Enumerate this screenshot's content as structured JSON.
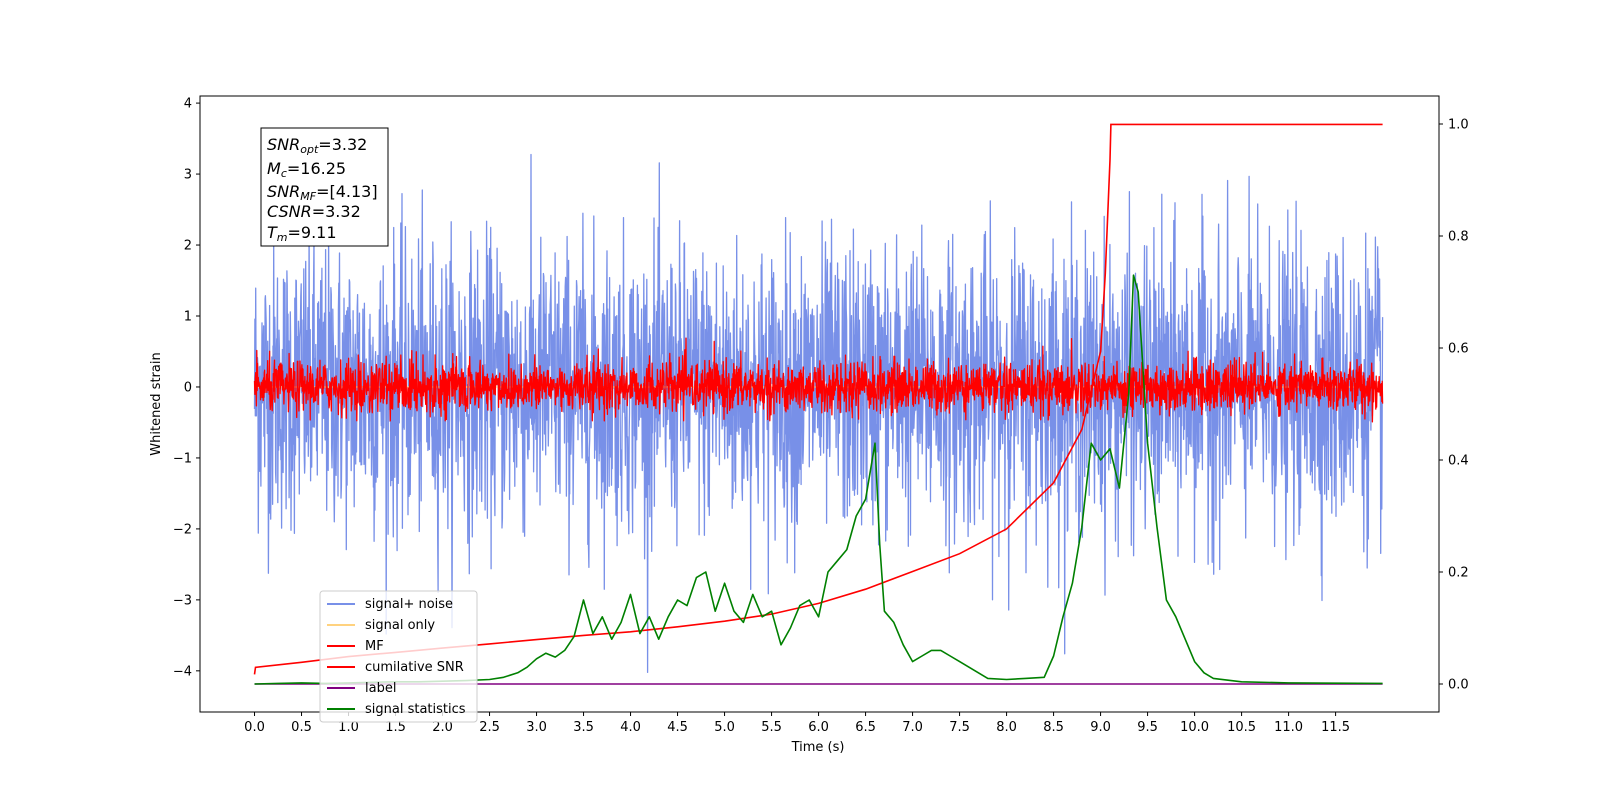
{
  "colors": {
    "signal_noise": "#7890e8",
    "signal_only": "#ffd27f",
    "mf": "#ff0000",
    "cumulative_snr": "#ff0000",
    "label": "#800080",
    "signal_statistics": "#008000"
  },
  "chart_data": {
    "type": "line",
    "title": "",
    "xlabel": "Time (s)",
    "ylabel": "Whitened strain",
    "xlim": [
      -0.58,
      12.6
    ],
    "ylim": [
      -4.58,
      4.1
    ],
    "y2lim": [
      -0.05,
      1.05
    ],
    "grid": false,
    "legend_position": "lower-left",
    "x_ticks": [
      "0.0",
      "0.5",
      "1.0",
      "1.5",
      "2.0",
      "2.5",
      "3.0",
      "3.5",
      "4.0",
      "4.5",
      "5.0",
      "5.5",
      "6.0",
      "6.5",
      "7.0",
      "7.5",
      "8.0",
      "8.5",
      "9.0",
      "9.5",
      "10.0",
      "10.5",
      "11.0",
      "11.5"
    ],
    "y_ticks": [
      "4",
      "3",
      "2",
      "1",
      "0",
      "−1",
      "−2",
      "−3",
      "−4"
    ],
    "y2_ticks": [
      "1.0",
      "0.8",
      "0.6",
      "0.4",
      "0.2",
      "0.0"
    ],
    "info_box": [
      {
        "main": "SNR",
        "sub": "opt",
        "value": "=3.32"
      },
      {
        "main": "M",
        "sub": "c",
        "value": "=16.25"
      },
      {
        "main": "SNR",
        "sub": "MF",
        "value": "=[4.13]"
      },
      {
        "main": "CSNR",
        "sub": "",
        "value": "=3.32"
      },
      {
        "main": "T",
        "sub": "m",
        "value": "=9.11"
      }
    ],
    "series": [
      {
        "name": "signal+ noise",
        "axis": "left",
        "kind": "noise",
        "x_range": [
          0,
          12
        ],
        "amplitude_std": 1.0,
        "range": [
          -4.15,
          3.7
        ]
      },
      {
        "name": "signal only",
        "axis": "left",
        "kind": "flat",
        "x_range": [
          0,
          12
        ],
        "values": [
          0
        ]
      },
      {
        "name": "MF",
        "axis": "left",
        "kind": "noise",
        "x_range": [
          0,
          12
        ],
        "amplitude_std": 0.18,
        "range": [
          -0.5,
          1.0
        ]
      },
      {
        "name": "cumilative SNR",
        "axis": "left",
        "x": [
          0,
          0.01,
          0.5,
          1.0,
          1.5,
          2.0,
          2.5,
          3.0,
          3.5,
          4.0,
          4.5,
          5.0,
          5.5,
          6.0,
          6.5,
          7.0,
          7.5,
          8.0,
          8.5,
          8.8,
          9.0,
          9.05,
          9.1,
          9.11,
          12.0
        ],
        "values": [
          -4.05,
          -3.95,
          -3.88,
          -3.8,
          -3.74,
          -3.68,
          -3.62,
          -3.56,
          -3.5,
          -3.45,
          -3.38,
          -3.3,
          -3.2,
          -3.05,
          -2.85,
          -2.6,
          -2.35,
          -2.0,
          -1.35,
          -0.6,
          0.5,
          1.6,
          3.2,
          3.7,
          3.7
        ]
      },
      {
        "name": "label",
        "axis": "right",
        "x": [
          0,
          12
        ],
        "values": [
          0,
          0
        ]
      },
      {
        "name": "signal statistics",
        "axis": "right",
        "x": [
          0,
          0.25,
          0.5,
          0.75,
          1.0,
          1.25,
          1.5,
          1.75,
          2.0,
          2.25,
          2.5,
          2.65,
          2.8,
          2.9,
          3.0,
          3.1,
          3.2,
          3.3,
          3.4,
          3.5,
          3.55,
          3.6,
          3.7,
          3.8,
          3.9,
          4.0,
          4.1,
          4.2,
          4.3,
          4.4,
          4.5,
          4.6,
          4.7,
          4.8,
          4.9,
          5.0,
          5.1,
          5.2,
          5.3,
          5.4,
          5.5,
          5.6,
          5.7,
          5.8,
          5.9,
          6.0,
          6.1,
          6.2,
          6.3,
          6.4,
          6.5,
          6.6,
          6.65,
          6.7,
          6.8,
          6.9,
          7.0,
          7.1,
          7.2,
          7.3,
          7.4,
          7.5,
          7.6,
          7.7,
          7.8,
          8.0,
          8.2,
          8.4,
          8.5,
          8.6,
          8.7,
          8.8,
          8.9,
          9.0,
          9.1,
          9.2,
          9.3,
          9.35,
          9.4,
          9.5,
          9.6,
          9.7,
          9.8,
          9.9,
          10.0,
          10.1,
          10.2,
          10.5,
          11.0,
          12.0
        ],
        "values": [
          0.0,
          0.001,
          0.002,
          0.001,
          0.002,
          0.003,
          0.004,
          0.004,
          0.005,
          0.006,
          0.008,
          0.012,
          0.02,
          0.03,
          0.045,
          0.055,
          0.048,
          0.06,
          0.085,
          0.15,
          0.12,
          0.09,
          0.12,
          0.08,
          0.11,
          0.16,
          0.09,
          0.12,
          0.08,
          0.12,
          0.15,
          0.14,
          0.19,
          0.2,
          0.13,
          0.18,
          0.13,
          0.11,
          0.16,
          0.12,
          0.13,
          0.07,
          0.1,
          0.14,
          0.15,
          0.12,
          0.2,
          0.22,
          0.24,
          0.3,
          0.33,
          0.43,
          0.25,
          0.13,
          0.11,
          0.07,
          0.04,
          0.05,
          0.06,
          0.06,
          0.05,
          0.04,
          0.03,
          0.02,
          0.01,
          0.008,
          0.01,
          0.012,
          0.05,
          0.12,
          0.18,
          0.28,
          0.43,
          0.4,
          0.42,
          0.35,
          0.52,
          0.73,
          0.7,
          0.43,
          0.28,
          0.15,
          0.12,
          0.08,
          0.04,
          0.02,
          0.01,
          0.004,
          0.002,
          0.001
        ]
      }
    ]
  }
}
